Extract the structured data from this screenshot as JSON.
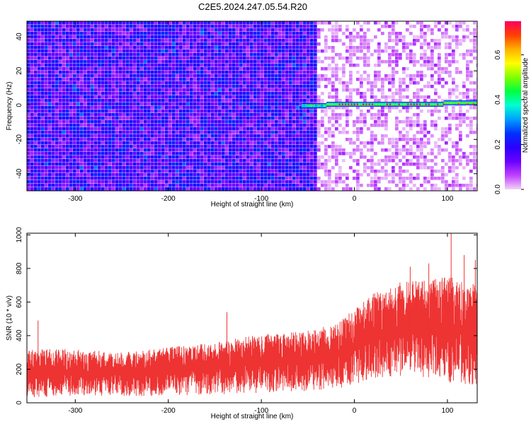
{
  "title": "C2E5.2024.247.05.54.R20",
  "chart_data": [
    {
      "type": "heatmap",
      "xlabel": "Height of straight line (km)",
      "ylabel": "Frequency (Hz)",
      "xlim": [
        -352,
        132
      ],
      "ylim": [
        -50,
        49
      ],
      "xticks": [
        "-300",
        "-200",
        "-100",
        "0",
        "100"
      ],
      "xtick_values": [
        -300,
        -200,
        -100,
        0,
        100
      ],
      "yticks": [
        "-40",
        "-20",
        "0",
        "20",
        "40"
      ],
      "ytick_values": [
        -40,
        -20,
        0,
        20,
        40
      ],
      "colorbar": {
        "label": "Normalized spectral amplitude",
        "range": [
          0,
          0.75
        ],
        "ticks": [
          "0.0",
          "0.2",
          "0.4",
          "0.6"
        ],
        "tick_values": [
          0,
          0.2,
          0.4,
          0.6
        ],
        "colors": [
          "#f2d2f8",
          "#c040ff",
          "#6a00ff",
          "#2a00ff",
          "#0030ff",
          "#00a0ff",
          "#00ffd0",
          "#00ff40",
          "#80ff00",
          "#ffff00",
          "#ffb000",
          "#ff4000",
          "#ff0060"
        ]
      },
      "signal_band": {
        "freq_hz": 0.5,
        "x_start": -57,
        "x_end": 132,
        "peak_amplitude": 0.7
      },
      "noise_transition_km": -40
    },
    {
      "type": "line",
      "xlabel": "Height of straight line (km)",
      "ylabel": "SNR (10 * v/v)",
      "xlim": [
        -352,
        132
      ],
      "ylim": [
        0,
        1010
      ],
      "xticks": [
        "-300",
        "-200",
        "-100",
        "0",
        "100"
      ],
      "xtick_values": [
        -300,
        -200,
        -100,
        0,
        100
      ],
      "yticks": [
        "0",
        "200",
        "400",
        "600",
        "800",
        "1000"
      ],
      "ytick_values": [
        0,
        200,
        400,
        600,
        800,
        1000
      ],
      "color": "#ee3333",
      "envelope": {
        "x": [
          -352,
          -300,
          -250,
          -200,
          -150,
          -100,
          -50,
          -20,
          0,
          20,
          50,
          80,
          100,
          132
        ],
        "min": [
          30,
          40,
          40,
          40,
          50,
          60,
          70,
          80,
          110,
          140,
          160,
          150,
          120,
          100
        ],
        "max": [
          320,
          320,
          300,
          330,
          360,
          410,
          430,
          480,
          560,
          650,
          720,
          730,
          760,
          720
        ]
      },
      "peaks": [
        {
          "x": -340,
          "y": 490
        },
        {
          "x": -137,
          "y": 540
        },
        {
          "x": 10,
          "y": 600
        },
        {
          "x": 60,
          "y": 810
        },
        {
          "x": 80,
          "y": 830
        },
        {
          "x": 104,
          "y": 1010
        },
        {
          "x": 118,
          "y": 880
        },
        {
          "x": 130,
          "y": 850
        }
      ]
    }
  ]
}
